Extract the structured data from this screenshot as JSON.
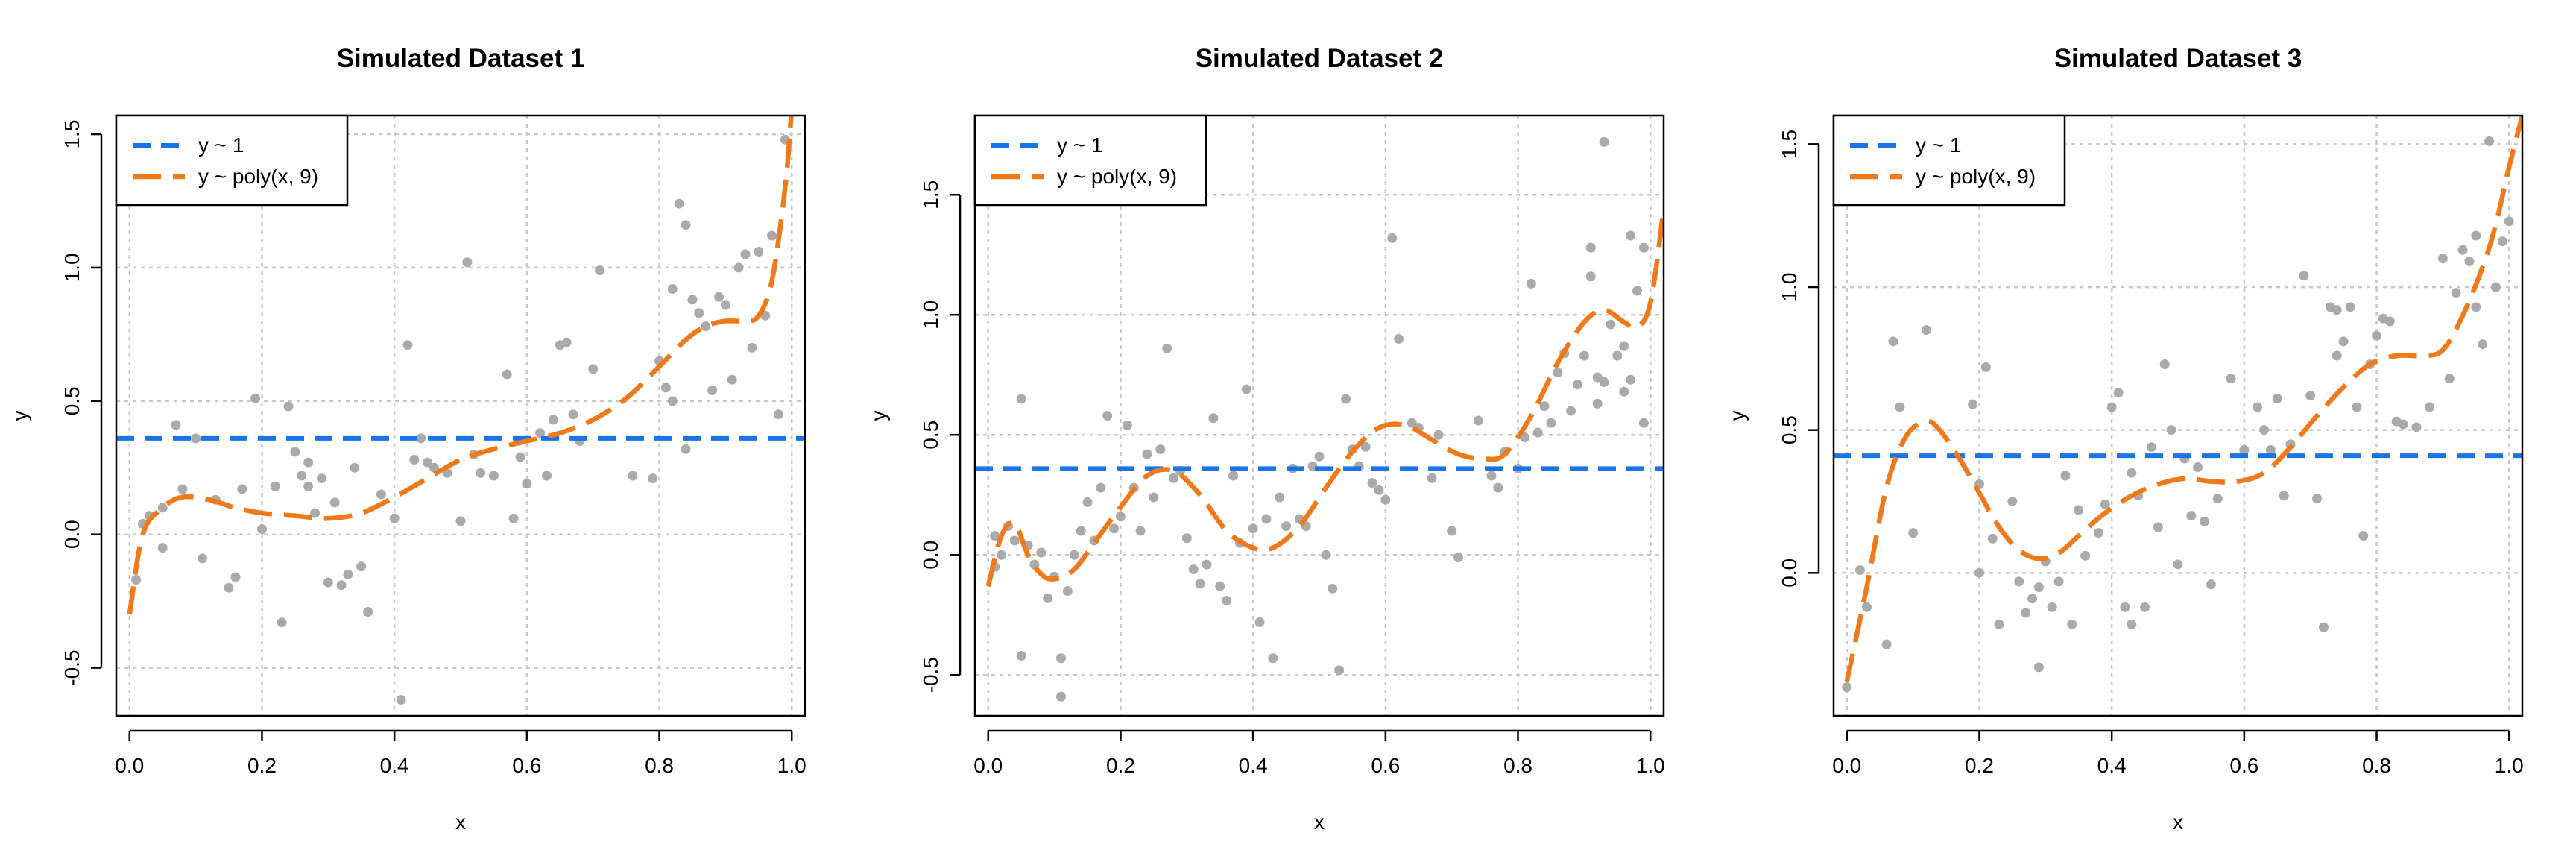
{
  "colors": {
    "points": "#aaaaaa",
    "mean_line": "#1a73e8",
    "poly_line": "#f07a1a",
    "grid": "#c8c8c8"
  },
  "legend_position": "top-left",
  "chart_data": [
    {
      "type": "scatter",
      "title": "Simulated Dataset 1",
      "xlabel": "x",
      "ylabel": "y",
      "xlim": [
        -0.02,
        1.02
      ],
      "ylim": [
        -0.68,
        1.57
      ],
      "xticks": [
        0.0,
        0.2,
        0.4,
        0.6,
        0.8,
        1.0
      ],
      "xtick_labels": [
        "0.0",
        "0.2",
        "0.4",
        "0.6",
        "0.8",
        "1.0"
      ],
      "yticks": [
        -0.5,
        0.0,
        0.5,
        1.0,
        1.5
      ],
      "ytick_labels": [
        "-0.5",
        "0.0",
        "0.5",
        "1.0",
        "1.5"
      ],
      "grid": true,
      "legend": [
        "y ~ 1",
        "y ~ poly(x, 9)"
      ],
      "mean_line": 0.36,
      "poly_fit": {
        "x": [
          0.0,
          0.02,
          0.05,
          0.08,
          0.12,
          0.16,
          0.2,
          0.25,
          0.3,
          0.35,
          0.4,
          0.45,
          0.5,
          0.55,
          0.6,
          0.65,
          0.7,
          0.75,
          0.8,
          0.84,
          0.87,
          0.9,
          0.93,
          0.95,
          0.97,
          0.99,
          1.0
        ],
        "y": [
          -0.3,
          0.0,
          0.1,
          0.14,
          0.13,
          0.1,
          0.08,
          0.07,
          0.06,
          0.08,
          0.14,
          0.21,
          0.28,
          0.32,
          0.35,
          0.38,
          0.43,
          0.51,
          0.63,
          0.73,
          0.78,
          0.8,
          0.8,
          0.82,
          0.95,
          1.3,
          1.6
        ]
      },
      "points": [
        [
          0.01,
          -0.17
        ],
        [
          0.02,
          0.04
        ],
        [
          0.03,
          0.07
        ],
        [
          0.05,
          0.1
        ],
        [
          0.05,
          -0.05
        ],
        [
          0.07,
          0.41
        ],
        [
          0.08,
          0.17
        ],
        [
          0.1,
          0.36
        ],
        [
          0.11,
          -0.09
        ],
        [
          0.13,
          0.13
        ],
        [
          0.15,
          -0.2
        ],
        [
          0.16,
          -0.16
        ],
        [
          0.17,
          0.17
        ],
        [
          0.19,
          0.51
        ],
        [
          0.2,
          0.02
        ],
        [
          0.22,
          0.18
        ],
        [
          0.23,
          -0.33
        ],
        [
          0.24,
          0.48
        ],
        [
          0.25,
          0.31
        ],
        [
          0.26,
          0.22
        ],
        [
          0.27,
          0.27
        ],
        [
          0.27,
          0.18
        ],
        [
          0.28,
          0.08
        ],
        [
          0.29,
          0.21
        ],
        [
          0.3,
          -0.18
        ],
        [
          0.31,
          0.12
        ],
        [
          0.32,
          -0.19
        ],
        [
          0.33,
          -0.15
        ],
        [
          0.34,
          0.25
        ],
        [
          0.35,
          -0.12
        ],
        [
          0.36,
          -0.29
        ],
        [
          0.38,
          0.15
        ],
        [
          0.4,
          0.06
        ],
        [
          0.41,
          -0.62
        ],
        [
          0.42,
          0.71
        ],
        [
          0.43,
          0.28
        ],
        [
          0.44,
          0.36
        ],
        [
          0.45,
          0.27
        ],
        [
          0.46,
          0.25
        ],
        [
          0.48,
          0.23
        ],
        [
          0.5,
          0.05
        ],
        [
          0.51,
          1.02
        ],
        [
          0.52,
          0.3
        ],
        [
          0.53,
          0.23
        ],
        [
          0.55,
          0.22
        ],
        [
          0.57,
          0.6
        ],
        [
          0.58,
          0.06
        ],
        [
          0.59,
          0.29
        ],
        [
          0.6,
          0.19
        ],
        [
          0.62,
          0.38
        ],
        [
          0.63,
          0.22
        ],
        [
          0.64,
          0.43
        ],
        [
          0.65,
          0.71
        ],
        [
          0.66,
          0.72
        ],
        [
          0.67,
          0.45
        ],
        [
          0.68,
          0.35
        ],
        [
          0.7,
          0.62
        ],
        [
          0.71,
          0.99
        ],
        [
          0.76,
          0.22
        ],
        [
          0.79,
          0.21
        ],
        [
          0.8,
          0.65
        ],
        [
          0.81,
          0.55
        ],
        [
          0.82,
          0.5
        ],
        [
          0.82,
          0.92
        ],
        [
          0.83,
          1.24
        ],
        [
          0.84,
          1.16
        ],
        [
          0.84,
          0.32
        ],
        [
          0.85,
          0.88
        ],
        [
          0.86,
          0.83
        ],
        [
          0.87,
          0.78
        ],
        [
          0.88,
          0.54
        ],
        [
          0.89,
          0.89
        ],
        [
          0.9,
          0.86
        ],
        [
          0.91,
          0.58
        ],
        [
          0.92,
          1.0
        ],
        [
          0.93,
          1.05
        ],
        [
          0.94,
          0.7
        ],
        [
          0.95,
          1.06
        ],
        [
          0.96,
          0.82
        ],
        [
          0.97,
          1.12
        ],
        [
          0.98,
          0.45
        ],
        [
          0.99,
          1.48
        ]
      ]
    },
    {
      "type": "scatter",
      "title": "Simulated Dataset 2",
      "xlabel": "x",
      "ylabel": "y",
      "xlim": [
        -0.02,
        1.02
      ],
      "ylim": [
        -0.67,
        1.83
      ],
      "xticks": [
        0.0,
        0.2,
        0.4,
        0.6,
        0.8,
        1.0
      ],
      "xtick_labels": [
        "0.0",
        "0.2",
        "0.4",
        "0.6",
        "0.8",
        "1.0"
      ],
      "yticks": [
        -0.5,
        0.0,
        0.5,
        1.0,
        1.5
      ],
      "ytick_labels": [
        "-0.5",
        "0.0",
        "0.5",
        "1.0",
        "1.5"
      ],
      "grid": true,
      "legend": [
        "y ~ 1",
        "y ~ poly(x, 9)"
      ],
      "mean_line": 0.36,
      "poly_fit": {
        "x": [
          0.0,
          0.02,
          0.04,
          0.06,
          0.08,
          0.1,
          0.13,
          0.16,
          0.2,
          0.24,
          0.28,
          0.32,
          0.36,
          0.4,
          0.43,
          0.47,
          0.51,
          0.55,
          0.59,
          0.63,
          0.67,
          0.71,
          0.75,
          0.78,
          0.82,
          0.86,
          0.9,
          0.93,
          0.96,
          0.98,
          1.0,
          1.02
        ],
        "y": [
          -0.13,
          0.08,
          0.13,
          0.0,
          -0.08,
          -0.1,
          -0.06,
          0.05,
          0.2,
          0.33,
          0.35,
          0.25,
          0.1,
          0.03,
          0.03,
          0.12,
          0.28,
          0.43,
          0.53,
          0.54,
          0.48,
          0.42,
          0.4,
          0.42,
          0.58,
          0.8,
          0.97,
          1.02,
          0.97,
          0.95,
          1.05,
          1.44
        ]
      },
      "points": [
        [
          0.01,
          0.08
        ],
        [
          0.01,
          -0.05
        ],
        [
          0.02,
          0.0
        ],
        [
          0.03,
          0.12
        ],
        [
          0.04,
          0.06
        ],
        [
          0.05,
          0.65
        ],
        [
          0.05,
          -0.42
        ],
        [
          0.06,
          0.04
        ],
        [
          0.07,
          -0.04
        ],
        [
          0.08,
          0.01
        ],
        [
          0.09,
          -0.18
        ],
        [
          0.1,
          -0.09
        ],
        [
          0.11,
          -0.43
        ],
        [
          0.11,
          -0.59
        ],
        [
          0.12,
          -0.15
        ],
        [
          0.13,
          0.0
        ],
        [
          0.14,
          0.1
        ],
        [
          0.15,
          0.22
        ],
        [
          0.16,
          0.06
        ],
        [
          0.17,
          0.28
        ],
        [
          0.18,
          0.58
        ],
        [
          0.19,
          0.11
        ],
        [
          0.2,
          0.16
        ],
        [
          0.21,
          0.54
        ],
        [
          0.22,
          0.28
        ],
        [
          0.23,
          0.1
        ],
        [
          0.24,
          0.42
        ],
        [
          0.25,
          0.24
        ],
        [
          0.26,
          0.44
        ],
        [
          0.27,
          0.86
        ],
        [
          0.28,
          0.32
        ],
        [
          0.29,
          0.35
        ],
        [
          0.3,
          0.07
        ],
        [
          0.31,
          -0.06
        ],
        [
          0.32,
          -0.12
        ],
        [
          0.33,
          -0.04
        ],
        [
          0.34,
          0.57
        ],
        [
          0.35,
          -0.13
        ],
        [
          0.36,
          -0.19
        ],
        [
          0.37,
          0.33
        ],
        [
          0.38,
          0.05
        ],
        [
          0.39,
          0.69
        ],
        [
          0.4,
          0.11
        ],
        [
          0.41,
          -0.28
        ],
        [
          0.42,
          0.15
        ],
        [
          0.43,
          -0.43
        ],
        [
          0.44,
          0.24
        ],
        [
          0.45,
          0.12
        ],
        [
          0.46,
          0.36
        ],
        [
          0.47,
          0.15
        ],
        [
          0.48,
          0.12
        ],
        [
          0.49,
          0.37
        ],
        [
          0.5,
          0.41
        ],
        [
          0.51,
          0.0
        ],
        [
          0.52,
          -0.14
        ],
        [
          0.53,
          -0.48
        ],
        [
          0.54,
          0.65
        ],
        [
          0.55,
          0.44
        ],
        [
          0.56,
          0.37
        ],
        [
          0.57,
          0.45
        ],
        [
          0.58,
          0.3
        ],
        [
          0.59,
          0.27
        ],
        [
          0.6,
          0.23
        ],
        [
          0.61,
          1.32
        ],
        [
          0.62,
          0.9
        ],
        [
          0.64,
          0.55
        ],
        [
          0.65,
          0.53
        ],
        [
          0.67,
          0.32
        ],
        [
          0.68,
          0.5
        ],
        [
          0.7,
          0.1
        ],
        [
          0.71,
          -0.01
        ],
        [
          0.74,
          0.56
        ],
        [
          0.76,
          0.33
        ],
        [
          0.77,
          0.28
        ],
        [
          0.78,
          0.43
        ],
        [
          0.8,
          0.36
        ],
        [
          0.81,
          0.49
        ],
        [
          0.82,
          1.13
        ],
        [
          0.83,
          0.51
        ],
        [
          0.84,
          0.62
        ],
        [
          0.85,
          0.55
        ],
        [
          0.86,
          0.76
        ],
        [
          0.87,
          0.84
        ],
        [
          0.88,
          0.6
        ],
        [
          0.89,
          0.71
        ],
        [
          0.9,
          0.83
        ],
        [
          0.91,
          1.28
        ],
        [
          0.91,
          1.16
        ],
        [
          0.92,
          0.74
        ],
        [
          0.92,
          0.63
        ],
        [
          0.93,
          0.72
        ],
        [
          0.93,
          1.72
        ],
        [
          0.94,
          0.96
        ],
        [
          0.95,
          0.83
        ],
        [
          0.96,
          0.87
        ],
        [
          0.96,
          0.68
        ],
        [
          0.97,
          0.73
        ],
        [
          0.97,
          1.33
        ],
        [
          0.98,
          1.1
        ],
        [
          0.99,
          1.28
        ],
        [
          0.99,
          0.55
        ]
      ]
    },
    {
      "type": "scatter",
      "title": "Simulated Dataset 3",
      "xlabel": "x",
      "ylabel": "y",
      "xlim": [
        -0.02,
        1.02
      ],
      "ylim": [
        -0.5,
        1.6
      ],
      "xticks": [
        0.0,
        0.2,
        0.4,
        0.6,
        0.8,
        1.0
      ],
      "xtick_labels": [
        "0.0",
        "0.2",
        "0.4",
        "0.6",
        "0.8",
        "1.0"
      ],
      "yticks": [
        0.0,
        0.5,
        1.0,
        1.5
      ],
      "ytick_labels": [
        "0.0",
        "0.5",
        "1.0",
        "1.5"
      ],
      "grid": true,
      "legend": [
        "y ~ 1",
        "y ~ poly(x, 9)"
      ],
      "mean_line": 0.41,
      "poly_fit": {
        "x": [
          0.0,
          0.03,
          0.06,
          0.09,
          0.12,
          0.14,
          0.17,
          0.2,
          0.23,
          0.26,
          0.29,
          0.32,
          0.35,
          0.39,
          0.43,
          0.47,
          0.51,
          0.55,
          0.59,
          0.63,
          0.67,
          0.71,
          0.75,
          0.79,
          0.83,
          0.87,
          0.9,
          0.93,
          0.96,
          0.98,
          1.0,
          1.02
        ],
        "y": [
          -0.38,
          -0.05,
          0.3,
          0.48,
          0.53,
          0.5,
          0.4,
          0.28,
          0.16,
          0.08,
          0.05,
          0.07,
          0.13,
          0.21,
          0.27,
          0.31,
          0.33,
          0.32,
          0.32,
          0.35,
          0.44,
          0.55,
          0.65,
          0.73,
          0.76,
          0.76,
          0.78,
          0.9,
          1.07,
          1.22,
          1.42,
          1.6
        ]
      },
      "points": [
        [
          0.0,
          -0.4
        ],
        [
          0.02,
          0.01
        ],
        [
          0.03,
          -0.12
        ],
        [
          0.06,
          -0.25
        ],
        [
          0.07,
          0.81
        ],
        [
          0.08,
          0.58
        ],
        [
          0.1,
          0.14
        ],
        [
          0.12,
          0.85
        ],
        [
          0.19,
          0.59
        ],
        [
          0.2,
          0.31
        ],
        [
          0.2,
          0.0
        ],
        [
          0.21,
          0.72
        ],
        [
          0.22,
          0.12
        ],
        [
          0.23,
          -0.18
        ],
        [
          0.25,
          0.25
        ],
        [
          0.26,
          -0.03
        ],
        [
          0.27,
          -0.14
        ],
        [
          0.28,
          -0.09
        ],
        [
          0.29,
          -0.05
        ],
        [
          0.29,
          -0.33
        ],
        [
          0.3,
          0.04
        ],
        [
          0.31,
          -0.12
        ],
        [
          0.32,
          -0.03
        ],
        [
          0.33,
          0.34
        ],
        [
          0.34,
          -0.18
        ],
        [
          0.35,
          0.22
        ],
        [
          0.36,
          0.06
        ],
        [
          0.38,
          0.14
        ],
        [
          0.39,
          0.24
        ],
        [
          0.4,
          0.58
        ],
        [
          0.41,
          0.63
        ],
        [
          0.42,
          -0.12
        ],
        [
          0.43,
          0.35
        ],
        [
          0.43,
          -0.18
        ],
        [
          0.44,
          0.27
        ],
        [
          0.45,
          -0.12
        ],
        [
          0.46,
          0.44
        ],
        [
          0.47,
          0.16
        ],
        [
          0.48,
          0.73
        ],
        [
          0.49,
          0.5
        ],
        [
          0.5,
          0.03
        ],
        [
          0.51,
          0.4
        ],
        [
          0.52,
          0.2
        ],
        [
          0.53,
          0.37
        ],
        [
          0.54,
          0.18
        ],
        [
          0.55,
          -0.04
        ],
        [
          0.56,
          0.26
        ],
        [
          0.58,
          0.68
        ],
        [
          0.6,
          0.43
        ],
        [
          0.62,
          0.58
        ],
        [
          0.63,
          0.5
        ],
        [
          0.64,
          0.43
        ],
        [
          0.65,
          0.61
        ],
        [
          0.66,
          0.27
        ],
        [
          0.67,
          0.45
        ],
        [
          0.69,
          1.04
        ],
        [
          0.7,
          0.62
        ],
        [
          0.71,
          0.26
        ],
        [
          0.72,
          -0.19
        ],
        [
          0.73,
          0.93
        ],
        [
          0.74,
          0.92
        ],
        [
          0.74,
          0.76
        ],
        [
          0.75,
          0.81
        ],
        [
          0.76,
          0.93
        ],
        [
          0.77,
          0.58
        ],
        [
          0.78,
          0.13
        ],
        [
          0.79,
          0.73
        ],
        [
          0.8,
          0.83
        ],
        [
          0.81,
          0.89
        ],
        [
          0.82,
          0.88
        ],
        [
          0.83,
          0.53
        ],
        [
          0.84,
          0.52
        ],
        [
          0.86,
          0.51
        ],
        [
          0.88,
          0.58
        ],
        [
          0.9,
          1.1
        ],
        [
          0.91,
          0.68
        ],
        [
          0.92,
          0.98
        ],
        [
          0.93,
          1.13
        ],
        [
          0.94,
          1.09
        ],
        [
          0.95,
          1.18
        ],
        [
          0.95,
          0.93
        ],
        [
          0.96,
          0.8
        ],
        [
          0.97,
          1.51
        ],
        [
          0.98,
          1.0
        ],
        [
          0.99,
          1.16
        ],
        [
          1.0,
          1.23
        ]
      ]
    }
  ]
}
